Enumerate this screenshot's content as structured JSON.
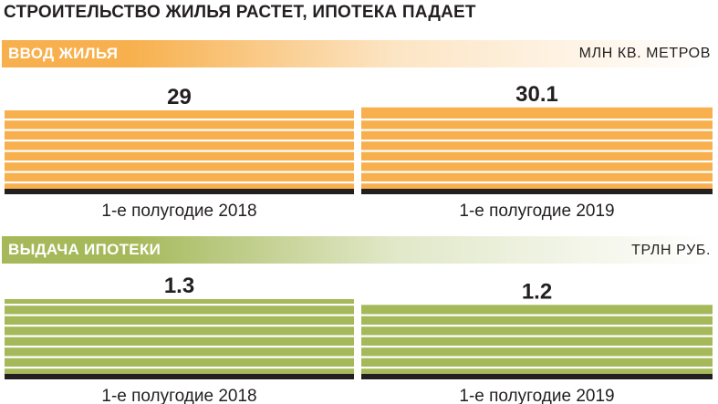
{
  "title": "СТРОИТЕЛЬСТВО ЖИЛЬЯ РАСТЕТ, ИПОТЕКА ПАДАЕТ",
  "colors": {
    "orange": "#f7b04d",
    "green": "#a5b95a",
    "stripe": "#ffffff",
    "baseline": "#231f20",
    "text": "#231f20"
  },
  "chart_data": [
    {
      "type": "bar",
      "title": "ВВОД ЖИЛЬЯ",
      "unit": "МЛН КВ. МЕТРОВ",
      "categories": [
        "1-е полугодие 2018",
        "1-е полугодие 2019"
      ],
      "values": [
        29,
        30.1
      ],
      "value_labels": [
        "29",
        "30.1"
      ],
      "color": "#f7b04d"
    },
    {
      "type": "bar",
      "title": "ВЫДАЧА ИПОТЕКИ",
      "unit": "ТРЛН РУБ.",
      "categories": [
        "1-е полугодие 2018",
        "1-е полугодие 2019"
      ],
      "values": [
        1.3,
        1.2
      ],
      "value_labels": [
        "1.3",
        "1.2"
      ],
      "color": "#a5b95a"
    }
  ]
}
